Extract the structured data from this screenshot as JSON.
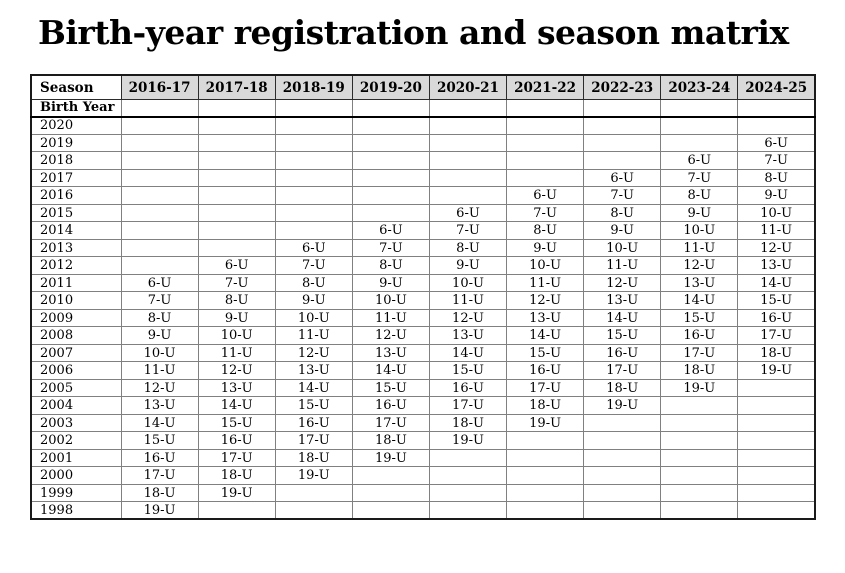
{
  "page": {
    "title": "Birth-year registration and season matrix"
  },
  "table": {
    "corner_header": "Season",
    "row_header_label": "Birth Year",
    "season_columns": [
      "2016-17",
      "2017-18",
      "2018-19",
      "2019-20",
      "2020-21",
      "2021-22",
      "2022-23",
      "2023-24",
      "2024-25"
    ],
    "rows": [
      {
        "birth_year": "2020",
        "cells": [
          "",
          "",
          "",
          "",
          "",
          "",
          "",
          "",
          ""
        ]
      },
      {
        "birth_year": "2019",
        "cells": [
          "",
          "",
          "",
          "",
          "",
          "",
          "",
          "",
          "6-U"
        ]
      },
      {
        "birth_year": "2018",
        "cells": [
          "",
          "",
          "",
          "",
          "",
          "",
          "",
          "6-U",
          "7-U"
        ]
      },
      {
        "birth_year": "2017",
        "cells": [
          "",
          "",
          "",
          "",
          "",
          "",
          "6-U",
          "7-U",
          "8-U"
        ]
      },
      {
        "birth_year": "2016",
        "cells": [
          "",
          "",
          "",
          "",
          "",
          "6-U",
          "7-U",
          "8-U",
          "9-U"
        ]
      },
      {
        "birth_year": "2015",
        "cells": [
          "",
          "",
          "",
          "",
          "6-U",
          "7-U",
          "8-U",
          "9-U",
          "10-U"
        ]
      },
      {
        "birth_year": "2014",
        "cells": [
          "",
          "",
          "",
          "6-U",
          "7-U",
          "8-U",
          "9-U",
          "10-U",
          "11-U"
        ]
      },
      {
        "birth_year": "2013",
        "cells": [
          "",
          "",
          "6-U",
          "7-U",
          "8-U",
          "9-U",
          "10-U",
          "11-U",
          "12-U"
        ]
      },
      {
        "birth_year": "2012",
        "cells": [
          "",
          "6-U",
          "7-U",
          "8-U",
          "9-U",
          "10-U",
          "11-U",
          "12-U",
          "13-U"
        ]
      },
      {
        "birth_year": "2011",
        "cells": [
          "6-U",
          "7-U",
          "8-U",
          "9-U",
          "10-U",
          "11-U",
          "12-U",
          "13-U",
          "14-U"
        ]
      },
      {
        "birth_year": "2010",
        "cells": [
          "7-U",
          "8-U",
          "9-U",
          "10-U",
          "11-U",
          "12-U",
          "13-U",
          "14-U",
          "15-U"
        ]
      },
      {
        "birth_year": "2009",
        "cells": [
          "8-U",
          "9-U",
          "10-U",
          "11-U",
          "12-U",
          "13-U",
          "14-U",
          "15-U",
          "16-U"
        ]
      },
      {
        "birth_year": "2008",
        "cells": [
          "9-U",
          "10-U",
          "11-U",
          "12-U",
          "13-U",
          "14-U",
          "15-U",
          "16-U",
          "17-U"
        ]
      },
      {
        "birth_year": "2007",
        "cells": [
          "10-U",
          "11-U",
          "12-U",
          "13-U",
          "14-U",
          "15-U",
          "16-U",
          "17-U",
          "18-U"
        ]
      },
      {
        "birth_year": "2006",
        "cells": [
          "11-U",
          "12-U",
          "13-U",
          "14-U",
          "15-U",
          "16-U",
          "17-U",
          "18-U",
          "19-U"
        ]
      },
      {
        "birth_year": "2005",
        "cells": [
          "12-U",
          "13-U",
          "14-U",
          "15-U",
          "16-U",
          "17-U",
          "18-U",
          "19-U",
          ""
        ]
      },
      {
        "birth_year": "2004",
        "cells": [
          "13-U",
          "14-U",
          "15-U",
          "16-U",
          "17-U",
          "18-U",
          "19-U",
          "",
          ""
        ]
      },
      {
        "birth_year": "2003",
        "cells": [
          "14-U",
          "15-U",
          "16-U",
          "17-U",
          "18-U",
          "19-U",
          "",
          "",
          ""
        ]
      },
      {
        "birth_year": "2002",
        "cells": [
          "15-U",
          "16-U",
          "17-U",
          "18-U",
          "19-U",
          "",
          "",
          "",
          ""
        ]
      },
      {
        "birth_year": "2001",
        "cells": [
          "16-U",
          "17-U",
          "18-U",
          "19-U",
          "",
          "",
          "",
          "",
          ""
        ]
      },
      {
        "birth_year": "2000",
        "cells": [
          "17-U",
          "18-U",
          "19-U",
          "",
          "",
          "",
          "",
          "",
          ""
        ]
      },
      {
        "birth_year": "1999",
        "cells": [
          "18-U",
          "19-U",
          "",
          "",
          "",
          "",
          "",
          "",
          ""
        ]
      },
      {
        "birth_year": "1998",
        "cells": [
          "19-U",
          "",
          "",
          "",
          "",
          "",
          "",
          "",
          ""
        ]
      }
    ],
    "colors": {
      "header_bg": "#d9d9d9",
      "grid_line": "#808080",
      "strong_line": "#000000"
    }
  }
}
